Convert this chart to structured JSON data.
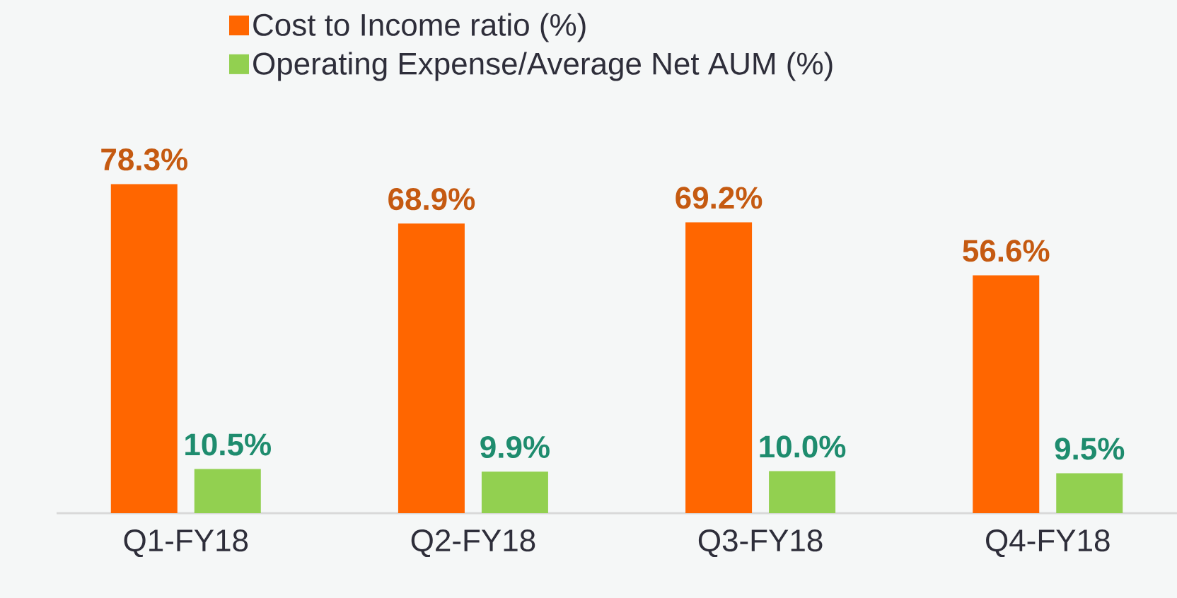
{
  "chart_data": {
    "type": "bar",
    "categories": [
      "Q1-FY18",
      "Q2-FY18",
      "Q3-FY18",
      "Q4-FY18"
    ],
    "series": [
      {
        "name": "Cost to Income ratio (%)",
        "color": "#ff6600",
        "values": [
          78.3,
          68.9,
          69.2,
          56.6
        ],
        "value_labels": [
          "78.3%",
          "68.9%",
          "69.2%",
          "56.6%"
        ]
      },
      {
        "name": "Operating Expense/Average Net AUM (%)",
        "color": "#92d050",
        "values": [
          10.5,
          9.9,
          10.0,
          9.5
        ],
        "value_labels": [
          "10.5%",
          "9.9%",
          "10.0%",
          "9.5%"
        ]
      }
    ],
    "legend": "top"
  }
}
